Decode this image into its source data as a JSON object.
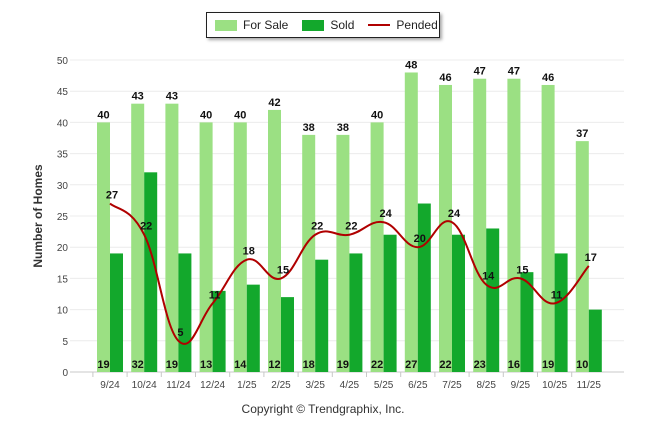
{
  "chart_data": {
    "type": "bar",
    "categories": [
      "9/24",
      "10/24",
      "11/24",
      "12/24",
      "1/25",
      "2/25",
      "3/25",
      "4/25",
      "5/25",
      "6/25",
      "7/25",
      "8/25",
      "9/25",
      "10/25",
      "11/25"
    ],
    "series": [
      {
        "name": "For Sale",
        "kind": "bar",
        "color": "#9be083",
        "values": [
          40,
          43,
          43,
          40,
          40,
          42,
          38,
          38,
          40,
          48,
          46,
          47,
          47,
          46,
          37
        ]
      },
      {
        "name": "Sold",
        "kind": "bar",
        "color": "#13a82c",
        "values": [
          19,
          32,
          19,
          13,
          14,
          12,
          18,
          19,
          22,
          27,
          22,
          23,
          16,
          19,
          10
        ]
      },
      {
        "name": "Pended",
        "kind": "line",
        "color": "#b00000",
        "values": [
          27,
          22,
          5,
          11,
          18,
          15,
          22,
          22,
          24,
          20,
          24,
          14,
          15,
          11,
          17
        ]
      }
    ],
    "ylabel": "Number of Homes",
    "xlabel": "",
    "ylim": [
      0,
      50
    ],
    "yticks": [
      0,
      5,
      10,
      15,
      20,
      25,
      30,
      35,
      40,
      45,
      50
    ],
    "legend": "top-center",
    "grid": true
  },
  "footer": {
    "copyright": "Copyright © Trendgraphix, Inc."
  }
}
